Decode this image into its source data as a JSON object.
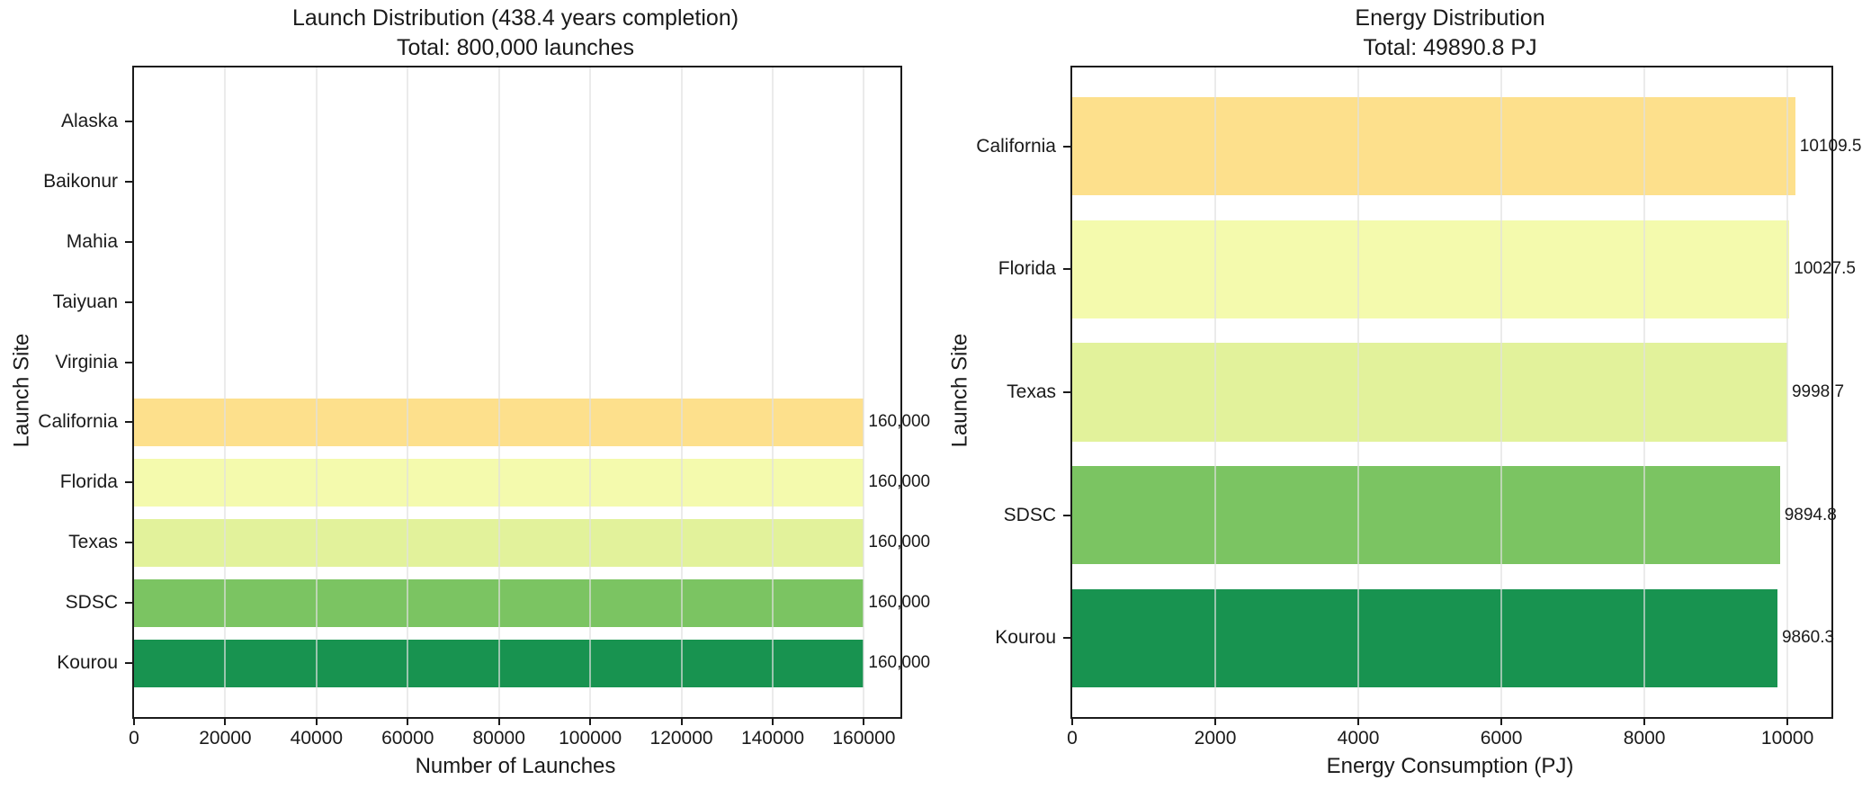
{
  "figure": {
    "background": "#ffffff",
    "text_color": "#1a1a1a",
    "axis_color": "#1b1b1b",
    "grid_color": "#e9e9e9"
  },
  "chart_data": [
    {
      "type": "bar",
      "orientation": "horizontal",
      "title": "Launch Distribution (438.4 years completion)",
      "subtitle": "Total: 800,000 launches",
      "xlabel": "Number of Launches",
      "ylabel": "Launch Site",
      "categories": [
        "Alaska",
        "Baikonur",
        "Mahia",
        "Taiyuan",
        "Virginia",
        "California",
        "Florida",
        "Texas",
        "SDSC",
        "Kourou"
      ],
      "values": [
        0,
        0,
        0,
        0,
        0,
        160000,
        160000,
        160000,
        160000,
        160000
      ],
      "bar_labels": [
        "",
        "",
        "",
        "",
        "",
        "160,000",
        "160,000",
        "160,000",
        "160,000",
        "160,000"
      ],
      "bar_colors": [
        null,
        null,
        null,
        null,
        null,
        "#fde08c",
        "#f4faad",
        "#e2f29b",
        "#7bc462",
        "#189350"
      ],
      "xlim": [
        0,
        168000
      ],
      "xticks": [
        0,
        20000,
        40000,
        60000,
        80000,
        100000,
        120000,
        140000,
        160000
      ],
      "xtick_labels": [
        "0",
        "20000",
        "40000",
        "60000",
        "80000",
        "100000",
        "120000",
        "140000",
        "160000"
      ],
      "grid": true,
      "legend": null
    },
    {
      "type": "bar",
      "orientation": "horizontal",
      "title": "Energy Distribution",
      "subtitle": "Total: 49890.8 PJ",
      "xlabel": "Energy Consumption (PJ)",
      "ylabel": "Launch Site",
      "categories": [
        "California",
        "Florida",
        "Texas",
        "SDSC",
        "Kourou"
      ],
      "values": [
        10109.5,
        10027.5,
        9998.7,
        9894.8,
        9860.3
      ],
      "bar_labels": [
        "10109.5",
        "10027.5",
        "9998.7",
        "9894.8",
        "9860.3"
      ],
      "bar_colors": [
        "#fde08c",
        "#f4faad",
        "#e2f29b",
        "#7bc462",
        "#189350"
      ],
      "xlim": [
        0,
        10615
      ],
      "xticks": [
        0,
        2000,
        4000,
        6000,
        8000,
        10000
      ],
      "xtick_labels": [
        "0",
        "2000",
        "4000",
        "6000",
        "8000",
        "10000"
      ],
      "grid": true,
      "legend": null
    }
  ]
}
